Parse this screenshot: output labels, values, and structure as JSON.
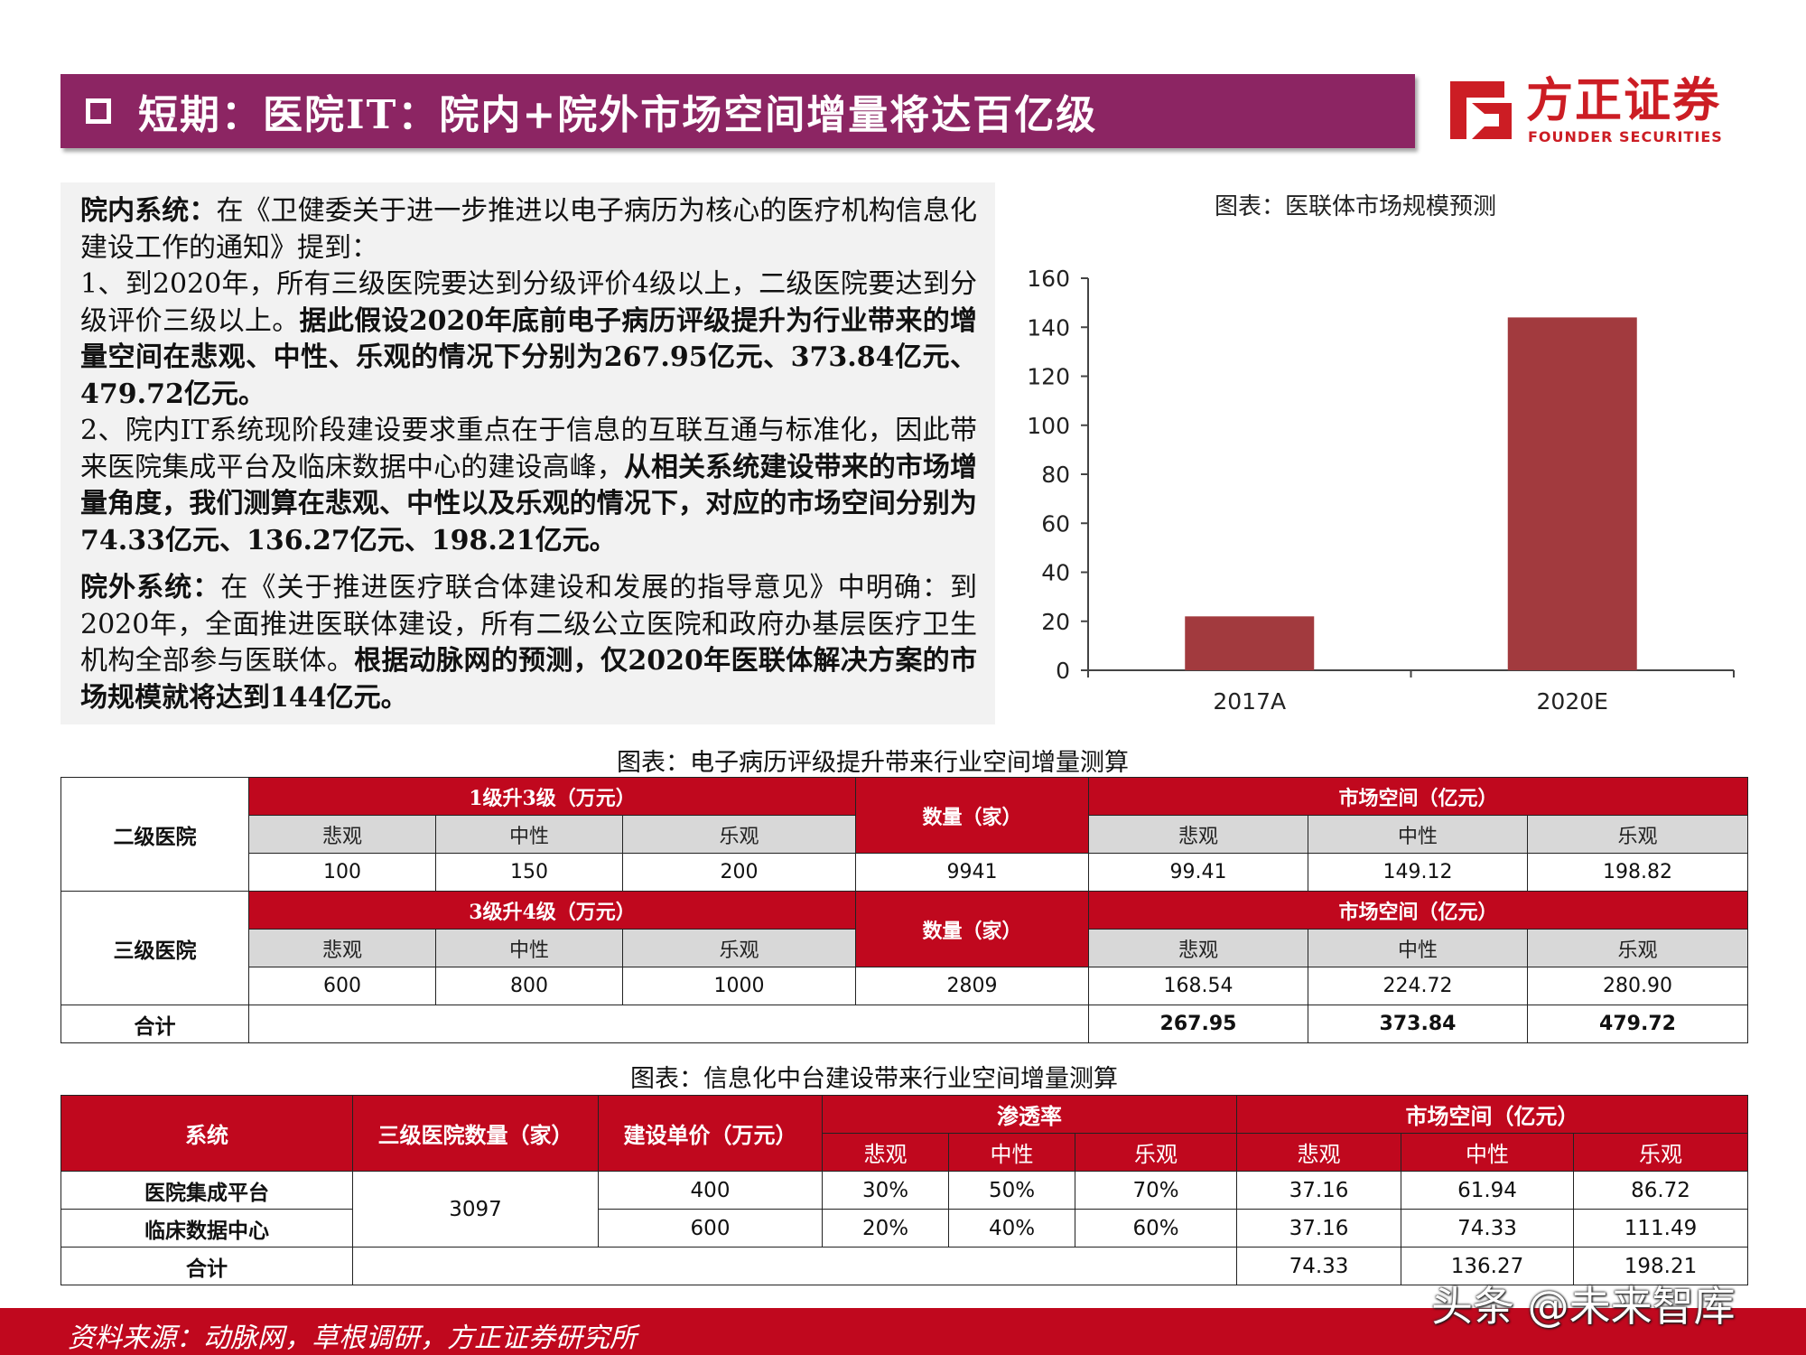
{
  "header": {
    "title": "短期：医院IT：院内+院外市场空间增量将达百亿级",
    "logo_cn": "方正证券",
    "logo_en": "FOUNDER SECURITIES"
  },
  "intro": {
    "p1_lead": "院内系统：",
    "p1_text": "在《卫健委关于进一步推进以电子病历为核心的医疗机构信息化建设工作的通知》提到：",
    "p2_text": "1、到2020年，所有三级医院要达到分级评价4级以上，二级医院要达到分级评价三级以上。",
    "p2_bold": "据此假设2020年底前电子病历评级提升为行业带来的增量空间在悲观、中性、乐观的情况下分别为267.95亿元、373.84亿元、479.72亿元。",
    "p3_text": "2、院内IT系统现阶段建设要求重点在于信息的互联互通与标准化，因此带来医院集成平台及临床数据中心的建设高峰，",
    "p3_bold": "从相关系统建设带来的市场增量角度，我们测算在悲观、中性以及乐观的情况下，对应的市场空间分别为74.33亿元、136.27亿元、198.21亿元。",
    "p4_lead": "院外系统：",
    "p4_text": "在《关于推进医疗联合体建设和发展的指导意见》中明确：到2020年，全面推进医联体建设，所有二级公立医院和政府办基层医疗卫生机构全部参与医联体。",
    "p4_bold": "根据动脉网的预测，仅2020年医联体解决方案的市场规模就将达到144亿元。"
  },
  "chart_data": {
    "type": "bar",
    "title": "图表：医联体市场规模预测",
    "categories": [
      "2017A",
      "2020E"
    ],
    "values": [
      22,
      144
    ],
    "ylim": [
      0,
      160
    ],
    "yticks": [
      0,
      20,
      40,
      60,
      80,
      100,
      120,
      140,
      160
    ],
    "bar_color": "#a23a3e",
    "grid": false
  },
  "table1": {
    "caption": "图表：电子病历评级提升带来行业空间增量测算",
    "sec2_label": "二级医院",
    "sec2_hdr": "1级升3级（万元）",
    "sec3_label": "三级医院",
    "sec3_hdr": "3级升4级（万元）",
    "count_hdr": "数量（家）",
    "market_hdr": "市场空间（亿元）",
    "bear": "悲观",
    "neutral": "中性",
    "bull": "乐观",
    "sec2_prices": [
      "100",
      "150",
      "200"
    ],
    "sec2_count": "9941",
    "sec2_market": [
      "99.41",
      "149.12",
      "198.82"
    ],
    "sec3_prices": [
      "600",
      "800",
      "1000"
    ],
    "sec3_count": "2809",
    "sec3_market": [
      "168.54",
      "224.72",
      "280.90"
    ],
    "total_label": "合计",
    "total": [
      "267.95",
      "373.84",
      "479.72"
    ]
  },
  "table2": {
    "caption": "图表：信息化中台建设带来行业空间增量测算",
    "col_system": "系统",
    "col_count": "三级医院数量（家）",
    "col_price": "建设单价（万元）",
    "col_penetration": "渗透率",
    "col_market": "市场空间（亿元）",
    "bear": "悲观",
    "neutral": "中性",
    "bull": "乐观",
    "count": "3097",
    "row1": {
      "name": "医院集成平台",
      "price": "400",
      "pen": [
        "30%",
        "50%",
        "70%"
      ],
      "market": [
        "37.16",
        "61.94",
        "86.72"
      ]
    },
    "row2": {
      "name": "临床数据中心",
      "price": "600",
      "pen": [
        "20%",
        "40%",
        "60%"
      ],
      "market": [
        "37.16",
        "74.33",
        "111.49"
      ]
    },
    "total_label": "合计",
    "total": [
      "74.33",
      "136.27",
      "198.21"
    ]
  },
  "footer": {
    "source": "资料来源：动脉网，草根调研，方正证券研究所"
  },
  "watermark": "头条 @未来智库"
}
